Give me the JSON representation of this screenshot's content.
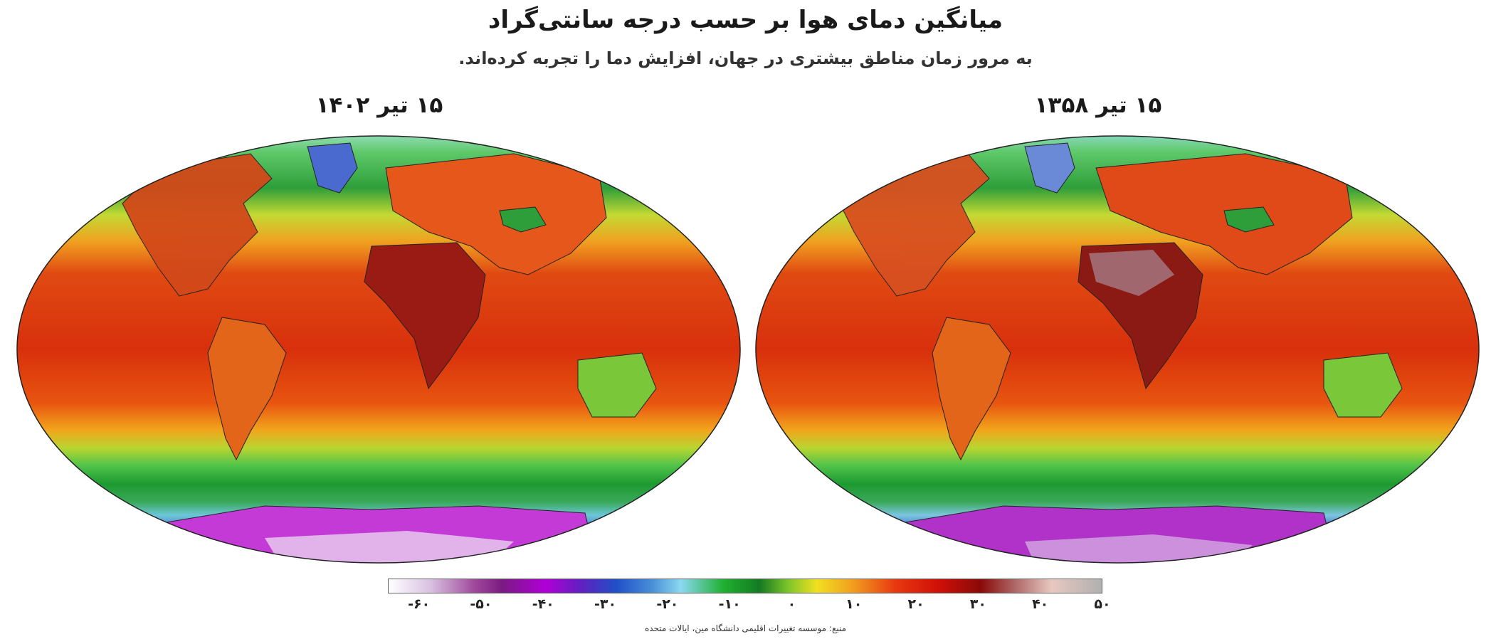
{
  "header": {
    "title": "میانگین دمای هوا بر حسب درجه سانتی‌گراد",
    "subtitle": "به مرور زمان مناطق بیشتری در جهان، افزایش دما را تجربه کرده‌اند."
  },
  "maps": {
    "left_label": "۱۵ تیر ۱۴۰۲",
    "right_label": "۱۵ تیر ۱۳۵۸"
  },
  "colorbar": {
    "range": [
      -65,
      50
    ],
    "ticks": [
      {
        "value": -60,
        "label": "-۶۰"
      },
      {
        "value": -50,
        "label": "-۵۰"
      },
      {
        "value": -40,
        "label": "-۴۰"
      },
      {
        "value": -30,
        "label": "-۳۰"
      },
      {
        "value": -20,
        "label": "-۲۰"
      },
      {
        "value": -10,
        "label": "-۱۰"
      },
      {
        "value": 0,
        "label": "۰"
      },
      {
        "value": 10,
        "label": "۱۰"
      },
      {
        "value": 20,
        "label": "۲۰"
      },
      {
        "value": 30,
        "label": "۳۰"
      },
      {
        "value": 40,
        "label": "۴۰"
      },
      {
        "value": 50,
        "label": "۵۰"
      }
    ]
  },
  "source": "منبع: موسسه تغییرات اقلیمی دانشگاه مین، ایالات متحده"
}
